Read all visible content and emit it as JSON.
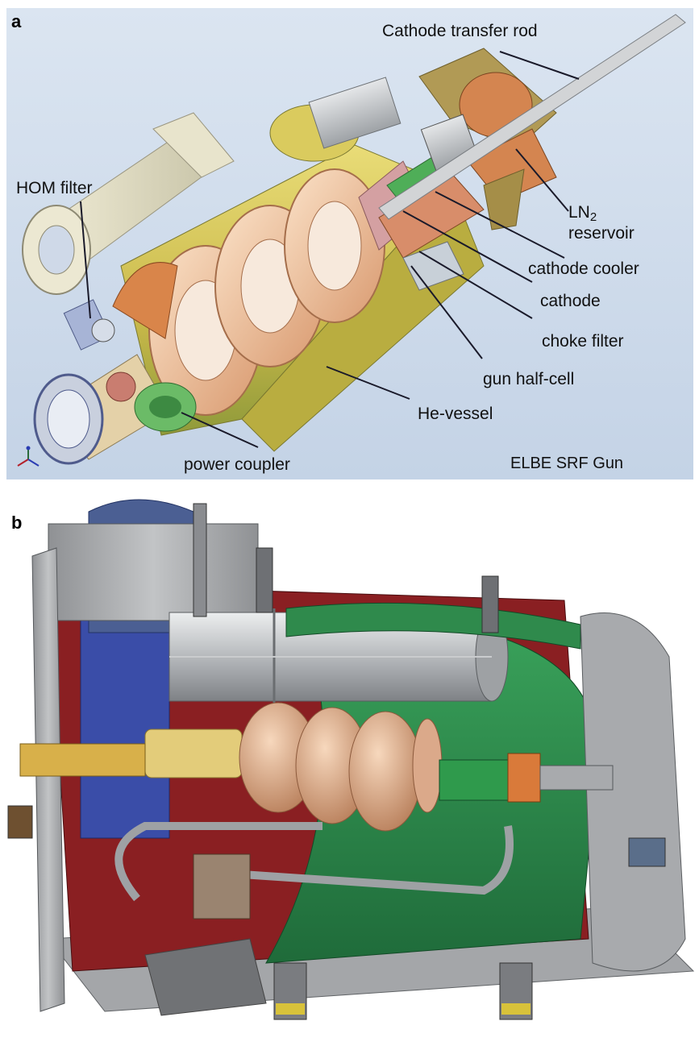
{
  "panel_a": {
    "letter": "a",
    "title": "ELBE SRF Gun",
    "labels": {
      "transfer_rod": "Cathode transfer rod",
      "hom_filter": "HOM filter",
      "ln2_main": "LN",
      "ln2_sub": "2",
      "ln2_line2": "reservoir",
      "cathode_cooler": "cathode cooler",
      "cathode": "cathode",
      "choke_filter": "choke filter",
      "gun_half_cell": "gun half-cell",
      "he_vessel": "He-vessel",
      "power_coupler": "power coupler"
    },
    "colors": {
      "background": "#cfdcec",
      "he_vessel": "#d6c85a",
      "cavity": "#f2c8a2",
      "copper": "#c8703c",
      "steel": "#b8bcc0",
      "green": "#5cae5a"
    }
  },
  "panel_b": {
    "letter": "b",
    "colors": {
      "frame": "#a9abad",
      "red_shield": "#8a1f22",
      "green_shield": "#2f8a4c",
      "cavity": "#e3b48f",
      "blue_tank": "#3a4da8",
      "gold": "#d8b04a"
    }
  }
}
